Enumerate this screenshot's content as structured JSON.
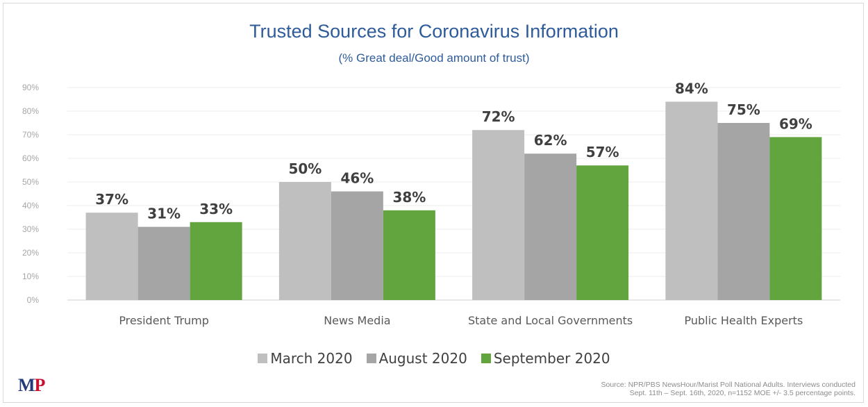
{
  "colors": {
    "march": "#bfbfbf",
    "august": "#a5a5a5",
    "september": "#62a43d",
    "title": "#2e5b9a",
    "grid": "#ededed",
    "axis": "#d0d0d0"
  },
  "chart_data": {
    "type": "bar",
    "title": "Trusted Sources for Coronavirus Information",
    "subtitle": "(% Great deal/Good amount of trust)",
    "categories": [
      "President Trump",
      "News Media",
      "State and Local Governments",
      "Public Health Experts"
    ],
    "series": [
      {
        "name": "March 2020",
        "values": [
          37,
          50,
          72,
          84
        ],
        "labels": [
          "37%",
          "50%",
          "72%",
          "84%"
        ],
        "color_key": "march"
      },
      {
        "name": "August 2020",
        "values": [
          31,
          46,
          62,
          75
        ],
        "labels": [
          "31%",
          "46%",
          "62%",
          "75%"
        ],
        "color_key": "august"
      },
      {
        "name": "September 2020",
        "values": [
          33,
          38,
          57,
          69
        ],
        "labels": [
          "33%",
          "38%",
          "57%",
          "69%"
        ],
        "color_key": "september"
      }
    ],
    "yticks": [
      0,
      10,
      20,
      30,
      40,
      50,
      60,
      70,
      80,
      90
    ],
    "ytick_labels": [
      "0%",
      "10%",
      "20%",
      "30%",
      "40%",
      "50%",
      "60%",
      "70%",
      "80%",
      "90%"
    ],
    "ylim": [
      0,
      90
    ],
    "grid": true,
    "legend_position": "bottom"
  },
  "logo": {
    "m": "M",
    "p": "P"
  },
  "source": {
    "line1": "Source: NPR/PBS NewsHour/Marist Poll National Adults. Interviews conducted",
    "line2": "Sept. 11th – Sept. 16th, 2020, n=1152 MOE +/- 3.5 percentage points."
  }
}
